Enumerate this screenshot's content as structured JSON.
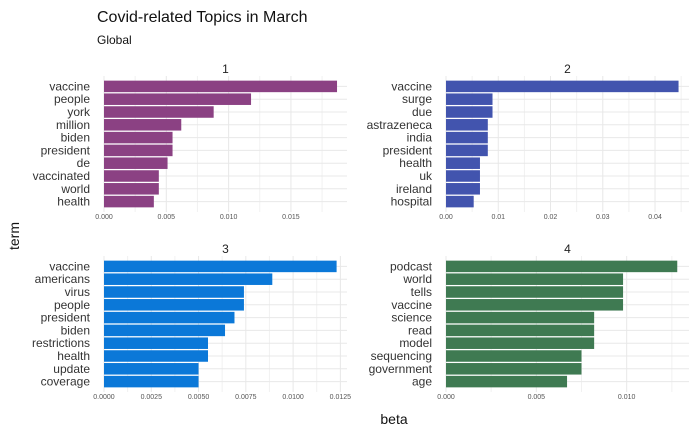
{
  "chart_data": {
    "type": "bar",
    "orientation": "horizontal",
    "title": "Covid-related Topics in March",
    "subtitle": "Global",
    "xlabel": "beta",
    "ylabel": "term",
    "grid": true,
    "facets": [
      {
        "label": "1",
        "color": "#8B4183",
        "xlim": [
          0,
          0.0195
        ],
        "ticks": [
          0,
          0.005,
          0.01,
          0.015
        ],
        "tick_labels": [
          "0.000",
          "0.005",
          "0.010",
          "0.015"
        ],
        "categories": [
          "vaccine",
          "people",
          "york",
          "million",
          "biden",
          "president",
          "de",
          "vaccinated",
          "world",
          "health"
        ],
        "values": [
          0.0187,
          0.0118,
          0.0088,
          0.0062,
          0.0055,
          0.0055,
          0.0051,
          0.0044,
          0.0044,
          0.004
        ]
      },
      {
        "label": "2",
        "color": "#4254AE",
        "xlim": [
          0,
          0.0465
        ],
        "ticks": [
          0,
          0.01,
          0.02,
          0.03,
          0.04
        ],
        "tick_labels": [
          "0.00",
          "0.01",
          "0.02",
          "0.03",
          "0.04"
        ],
        "categories": [
          "vaccine",
          "surge",
          "due",
          "astrazeneca",
          "india",
          "president",
          "health",
          "uk",
          "ireland",
          "hospital"
        ],
        "values": [
          0.0445,
          0.0089,
          0.0089,
          0.008,
          0.008,
          0.008,
          0.0065,
          0.0065,
          0.0065,
          0.0053
        ]
      },
      {
        "label": "3",
        "color": "#0B78D8",
        "xlim": [
          0,
          0.01285
        ],
        "ticks": [
          0,
          0.0025,
          0.005,
          0.0075,
          0.01,
          0.0125
        ],
        "tick_labels": [
          "0.0000",
          "0.0025",
          "0.0050",
          "0.0075",
          "0.0100",
          "0.0125"
        ],
        "categories": [
          "vaccine",
          "americans",
          "virus",
          "people",
          "president",
          "biden",
          "restrictions",
          "health",
          "update",
          "coverage"
        ],
        "values": [
          0.0123,
          0.0089,
          0.0074,
          0.0074,
          0.0069,
          0.0064,
          0.0055,
          0.0055,
          0.005,
          0.005
        ]
      },
      {
        "label": "4",
        "color": "#3F7A52",
        "xlim": [
          0,
          0.01345
        ],
        "ticks": [
          0,
          0.005,
          0.01
        ],
        "tick_labels": [
          "0.000",
          "0.005",
          "0.010"
        ],
        "categories": [
          "podcast",
          "world",
          "tells",
          "vaccine",
          "science",
          "read",
          "model",
          "sequencing",
          "government",
          "age"
        ],
        "values": [
          0.0128,
          0.0098,
          0.0098,
          0.0098,
          0.0082,
          0.0082,
          0.0082,
          0.0075,
          0.0075,
          0.0067
        ]
      }
    ]
  }
}
